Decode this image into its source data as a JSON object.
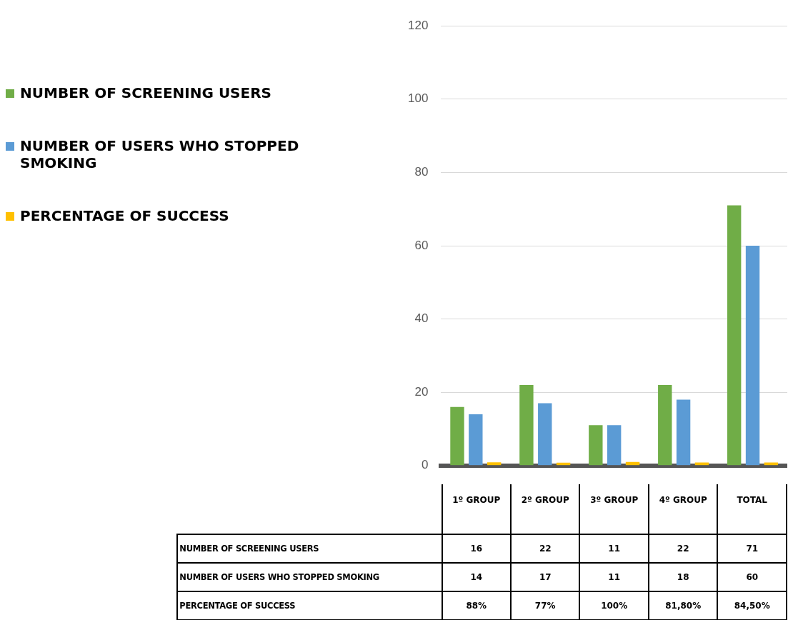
{
  "chart_data": {
    "type": "bar",
    "categories": [
      "1º GROUP",
      "2º GROUP",
      "3º GROUP",
      "4º GROUP",
      "TOTAL"
    ],
    "series": [
      {
        "name": "NUMBER OF SCREENING USERS",
        "color": "#70ad47",
        "values": [
          16,
          22,
          11,
          22,
          71
        ],
        "value_labels": [
          "16",
          "22",
          "11",
          "22",
          "71"
        ]
      },
      {
        "name": "NUMBER OF USERS WHO STOPPED SMOKING",
        "color": "#5b9bd5",
        "values": [
          14,
          17,
          11,
          18,
          60
        ],
        "value_labels": [
          "14",
          "17",
          "11",
          "18",
          "60"
        ]
      },
      {
        "name": "PERCENTAGE OF SUCCESS",
        "color": "#ffc000",
        "values": [
          0.88,
          0.77,
          1,
          0.818,
          0.845
        ],
        "value_labels": [
          "88%",
          "77%",
          "100%",
          "81,80%",
          "84,50%"
        ]
      }
    ],
    "ylim": [
      0,
      120
    ],
    "yticks": [
      0,
      20,
      40,
      60,
      80,
      100,
      120
    ],
    "grid": "y",
    "legend": "left"
  }
}
